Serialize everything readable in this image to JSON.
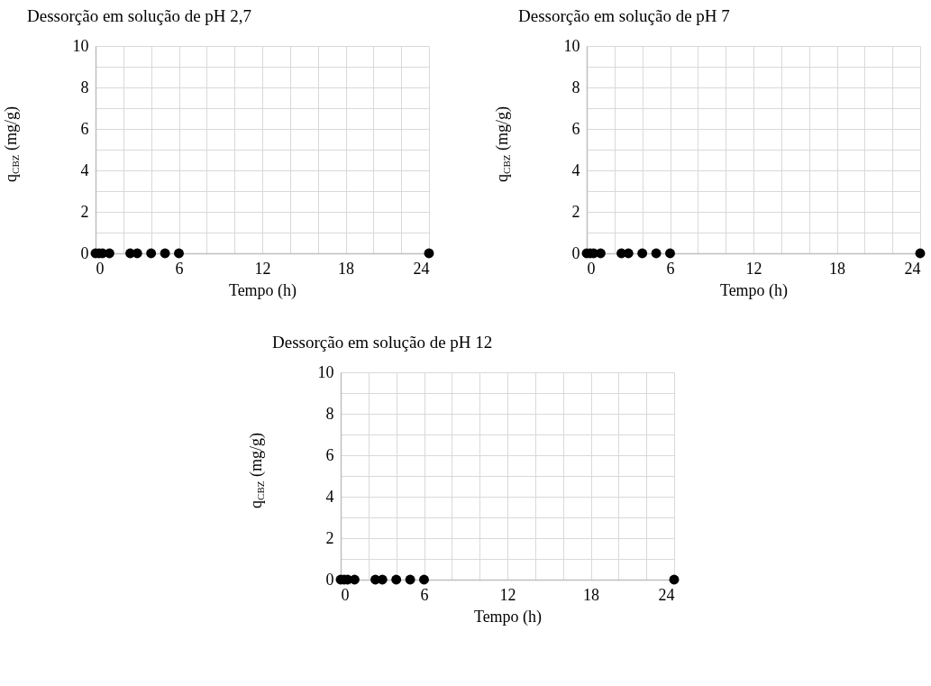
{
  "chart_data": [
    {
      "type": "scatter",
      "title": "Dessorção em solução de pH 2,7",
      "xlabel": "Tempo (h)",
      "ylabel": "q$_{CBZ}$ (mg/g)",
      "marker": "circle",
      "grid": true,
      "xlim": [
        0,
        24
      ],
      "ylim": [
        0,
        10
      ],
      "xticks": [
        0,
        {
          "value": 2,
          "label": null
        },
        {
          "value": 4,
          "label": null
        },
        6,
        {
          "value": 8,
          "label": null
        },
        {
          "value": 10,
          "label": null
        },
        12,
        {
          "value": 14,
          "label": null
        },
        {
          "value": 16,
          "label": null
        },
        18,
        {
          "value": 20,
          "label": null
        },
        {
          "value": 22,
          "label": null
        },
        24
      ],
      "yticks": [
        0,
        {
          "value": 1,
          "label": null
        },
        2,
        {
          "value": 3,
          "label": null
        },
        4,
        {
          "value": 5,
          "label": null
        },
        6,
        {
          "value": 7,
          "label": null
        },
        8,
        {
          "value": 9,
          "label": null
        },
        10
      ],
      "series": [
        {
          "color": "#000000",
          "x": [
            0,
            0.25,
            0.5,
            1,
            2.5,
            3,
            4,
            5,
            6,
            24
          ],
          "values": [
            0,
            0,
            0,
            0,
            0,
            0,
            0,
            0,
            0,
            0
          ]
        }
      ]
    },
    {
      "type": "scatter",
      "title": "Dessorção em solução de pH 7",
      "xlabel": "Tempo (h)",
      "ylabel": "q$_{CBZ}$ (mg/g)",
      "marker": "circle",
      "grid": true,
      "xlim": [
        0,
        24
      ],
      "ylim": [
        0,
        10
      ],
      "xticks": [
        0,
        {
          "value": 2,
          "label": null
        },
        {
          "value": 4,
          "label": null
        },
        6,
        {
          "value": 8,
          "label": null
        },
        {
          "value": 10,
          "label": null
        },
        12,
        {
          "value": 14,
          "label": null
        },
        {
          "value": 16,
          "label": null
        },
        18,
        {
          "value": 20,
          "label": null
        },
        {
          "value": 22,
          "label": null
        },
        24
      ],
      "yticks": [
        0,
        {
          "value": 1,
          "label": null
        },
        2,
        {
          "value": 3,
          "label": null
        },
        4,
        {
          "value": 5,
          "label": null
        },
        6,
        {
          "value": 7,
          "label": null
        },
        8,
        {
          "value": 9,
          "label": null
        },
        10
      ],
      "series": [
        {
          "color": "#000000",
          "x": [
            0,
            0.25,
            0.5,
            1,
            2.5,
            3,
            4,
            5,
            6,
            24
          ],
          "values": [
            0,
            0,
            0,
            0,
            0,
            0,
            0,
            0,
            0,
            0
          ]
        }
      ]
    },
    {
      "type": "scatter",
      "title": "Dessorção em solução de pH 12",
      "xlabel": "Tempo (h)",
      "ylabel": "q$_{CBZ}$ (mg/g)",
      "marker": "circle",
      "grid": true,
      "xlim": [
        0,
        24
      ],
      "ylim": [
        0,
        10
      ],
      "xticks": [
        0,
        {
          "value": 2,
          "label": null
        },
        {
          "value": 4,
          "label": null
        },
        6,
        {
          "value": 8,
          "label": null
        },
        {
          "value": 10,
          "label": null
        },
        12,
        {
          "value": 14,
          "label": null
        },
        {
          "value": 16,
          "label": null
        },
        18,
        {
          "value": 20,
          "label": null
        },
        {
          "value": 22,
          "label": null
        },
        24
      ],
      "yticks": [
        0,
        {
          "value": 1,
          "label": null
        },
        2,
        {
          "value": 3,
          "label": null
        },
        4,
        {
          "value": 5,
          "label": null
        },
        6,
        {
          "value": 7,
          "label": null
        },
        8,
        {
          "value": 9,
          "label": null
        },
        10
      ],
      "series": [
        {
          "color": "#000000",
          "x": [
            0,
            0.25,
            0.5,
            1,
            2.5,
            3,
            4,
            5,
            6,
            24
          ],
          "values": [
            0,
            0,
            0,
            0,
            0,
            0,
            0,
            0,
            0,
            0
          ]
        }
      ]
    }
  ]
}
